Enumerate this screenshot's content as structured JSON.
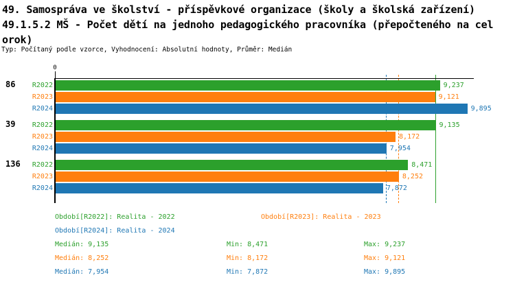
{
  "header": {
    "title_lines": [
      "49. Samospráva ve školství - příspěvkové organizace (školy a školská zařízení)",
      "49.1.5.2 MŠ - Počet dětí na jednoho pedagogického pracovníka (přepočteného na cel",
      "orok)"
    ],
    "meta": "Typ: Počítaný podle vzorce, Vyhodnocení: Absolutní hodnoty, Průměr: Medián"
  },
  "chart_data": {
    "type": "bar",
    "orientation": "horizontal",
    "x_axis": {
      "origin_label": "0",
      "min": 0,
      "max": 10.05
    },
    "series_colors": {
      "R2022": "#2ca02c",
      "R2023": "#ff7f0e",
      "R2024": "#1f77b4"
    },
    "groups": [
      {
        "label": "86",
        "bars": [
          {
            "series": "R2022",
            "value": 9.237,
            "label": "9,237"
          },
          {
            "series": "R2023",
            "value": 9.121,
            "label": "9,121"
          },
          {
            "series": "R2024",
            "value": 9.895,
            "label": "9,895"
          }
        ]
      },
      {
        "label": "39",
        "bars": [
          {
            "series": "R2022",
            "value": 9.135,
            "label": "9,135"
          },
          {
            "series": "R2023",
            "value": 8.172,
            "label": "8,172"
          },
          {
            "series": "R2024",
            "value": 7.954,
            "label": "7,954"
          }
        ]
      },
      {
        "label": "136",
        "bars": [
          {
            "series": "R2022",
            "value": 8.471,
            "label": "8,471"
          },
          {
            "series": "R2023",
            "value": 8.252,
            "label": "8,252"
          },
          {
            "series": "R2024",
            "value": 7.872,
            "label": "7,872"
          }
        ]
      }
    ],
    "median_lines": [
      {
        "series": "R2022",
        "value": 9.135,
        "style": "solid"
      },
      {
        "series": "R2023",
        "value": 8.252,
        "style": "dashed"
      },
      {
        "series": "R2024",
        "value": 7.954,
        "style": "dashed"
      }
    ],
    "axis_color": "#000000"
  },
  "legend": {
    "periods": [
      {
        "series": "R2022",
        "label": "Období[R2022]: Realita - 2022"
      },
      {
        "series": "R2023",
        "label": "Období[R2023]: Realita - 2023"
      },
      {
        "series": "R2024",
        "label": "Období[R2024]: Realita - 2024"
      }
    ],
    "stats": [
      {
        "series": "R2022",
        "median": "Medián: 9,135",
        "min": "Min: 8,471",
        "max": "Max: 9,237"
      },
      {
        "series": "R2023",
        "median": "Medián: 8,252",
        "min": "Min: 8,172",
        "max": "Max: 9,121"
      },
      {
        "series": "R2024",
        "median": "Medián: 7,954",
        "min": "Min: 7,872",
        "max": "Max: 9,895"
      }
    ]
  }
}
